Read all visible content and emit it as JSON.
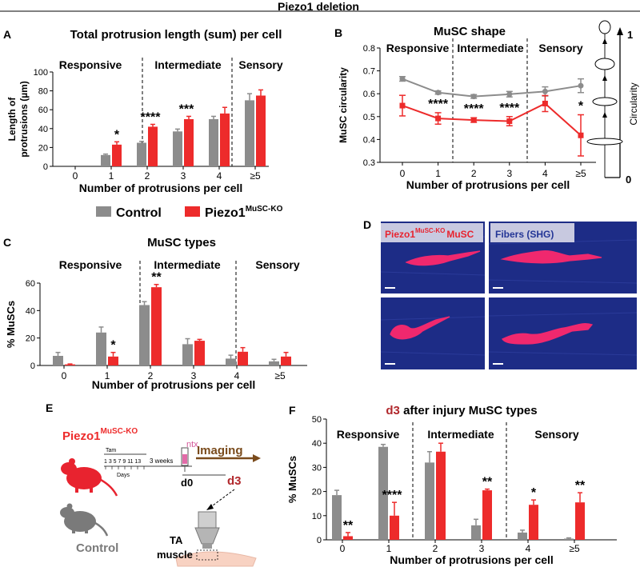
{
  "figure_title": "Piezo1 deletion",
  "panels": {
    "a": "A",
    "b": "B",
    "c": "C",
    "d": "D",
    "e": "E",
    "f": "F"
  },
  "legend": {
    "control": "Control",
    "ko_main": "Piezo1",
    "ko_sup": "MuSC-KO"
  },
  "colors": {
    "control": "#8c8c8c",
    "ko": "#ed2b2b",
    "sig_red": "#b1282c"
  },
  "chart_data": [
    {
      "panel": "A",
      "type": "bar",
      "title": "Total protrusion length (sum) per cell",
      "xlabel": "Number of protrusions per cell",
      "ylabel": "Length of protrusions (µm)",
      "ylim": [
        0,
        100
      ],
      "yticks": [
        "0",
        "20",
        "40",
        "60",
        "80",
        "100"
      ],
      "categories": [
        "0",
        "1",
        "2",
        "3",
        "4",
        "≥5"
      ],
      "regions": [
        "Responsive",
        "Intermediate",
        "Sensory"
      ],
      "series": [
        {
          "name": "Control",
          "values": [
            0,
            12,
            25,
            37,
            50,
            70
          ],
          "errors": [
            0,
            1,
            1.5,
            2.5,
            3,
            7
          ]
        },
        {
          "name": "Piezo1MuSC-KO",
          "values": [
            0,
            23,
            42,
            50,
            56,
            75
          ],
          "errors": [
            0,
            3,
            2.5,
            3,
            6.5,
            6
          ]
        }
      ],
      "significance": [
        "",
        "*",
        "****",
        "***",
        "",
        ""
      ]
    },
    {
      "panel": "B",
      "type": "line",
      "title": "MuSC shape",
      "xlabel": "Number of protrusions per cell",
      "ylabel": "MuSC circularity",
      "ylim": [
        0.3,
        0.8
      ],
      "yticks": [
        "0.3",
        "0.4",
        "0.5",
        "0.6",
        "0.7",
        "0.8"
      ],
      "categories": [
        "0",
        "1",
        "2",
        "3",
        "4",
        "≥5"
      ],
      "regions": [
        "Responsive",
        "Intermediate",
        "Sensory"
      ],
      "series": [
        {
          "name": "Control",
          "values": [
            0.665,
            0.605,
            0.588,
            0.598,
            0.61,
            0.635
          ],
          "errors": [
            0.01,
            0.007,
            0.008,
            0.012,
            0.02,
            0.03
          ]
        },
        {
          "name": "Piezo1MuSC-KO",
          "values": [
            0.548,
            0.492,
            0.485,
            0.48,
            0.557,
            0.418
          ],
          "errors": [
            0.045,
            0.025,
            0.01,
            0.02,
            0.035,
            0.09
          ]
        }
      ],
      "significance": [
        "",
        "****",
        "****",
        "****",
        "",
        "*"
      ],
      "circularity_axis": {
        "label": "Circularity",
        "top": "1",
        "bottom": "0"
      }
    },
    {
      "panel": "C",
      "type": "bar",
      "title": "MuSC types",
      "xlabel": "Number of protrusions per cell",
      "ylabel": "% MuSCs",
      "ylim": [
        0,
        60
      ],
      "yticks": [
        "0",
        "20",
        "40",
        "60"
      ],
      "categories": [
        "0",
        "1",
        "2",
        "3",
        "4",
        "≥5"
      ],
      "regions": [
        "Responsive",
        "Intermediate",
        "Sensory"
      ],
      "series": [
        {
          "name": "Control",
          "values": [
            7,
            24,
            44,
            15.5,
            5,
            3
          ],
          "errors": [
            2.5,
            4,
            2.5,
            4,
            2.5,
            1.5
          ]
        },
        {
          "name": "Piezo1MuSC-KO",
          "values": [
            0.8,
            6.5,
            57,
            18,
            10,
            6.5
          ],
          "errors": [
            0.3,
            3,
            2,
            1,
            3,
            3
          ]
        }
      ],
      "significance": [
        "",
        "*",
        "**",
        "",
        "",
        ""
      ]
    },
    {
      "panel": "F",
      "type": "bar",
      "title": "after injury MuSC types",
      "title_prefix": "d3",
      "xlabel": "Number of protrusions per cell",
      "ylabel": "% MuSCs",
      "ylim": [
        0,
        50
      ],
      "yticks": [
        "0",
        "10",
        "20",
        "30",
        "40",
        "50"
      ],
      "categories": [
        "0",
        "1",
        "2",
        "3",
        "4",
        "≥5"
      ],
      "regions": [
        "Responsive",
        "Intermediate",
        "Sensory"
      ],
      "series": [
        {
          "name": "Control",
          "values": [
            18.5,
            38.5,
            32,
            6,
            3,
            0.5
          ],
          "errors": [
            2,
            1,
            4.5,
            2.5,
            1,
            0.3
          ]
        },
        {
          "name": "Piezo1MuSC-KO",
          "values": [
            1.5,
            10,
            36.5,
            20.5,
            14.5,
            15.5
          ],
          "errors": [
            1.5,
            5.5,
            3.5,
            0.5,
            2,
            4
          ]
        }
      ],
      "significance": [
        "**",
        "****",
        "",
        "**",
        "*",
        "**"
      ]
    }
  ],
  "panel_d": {
    "label_ko_main": "Piezo1",
    "label_ko_sup": "MuSC-KO",
    "label_ko_end": "MuSC",
    "label_fibers": "Fibers (SHG)"
  },
  "panel_e": {
    "ko_main": "Piezo1",
    "ko_sup": "MuSC-KO",
    "tam": "Tam",
    "days_label": "Days",
    "days": "1 3 5 7 9 11 13",
    "weeks": "3 weeks",
    "ntx": "ntx",
    "imaging": "Imaging",
    "d0": "d0",
    "d3": "d3",
    "control": "Control",
    "ta": "TA",
    "muscle": "muscle"
  }
}
